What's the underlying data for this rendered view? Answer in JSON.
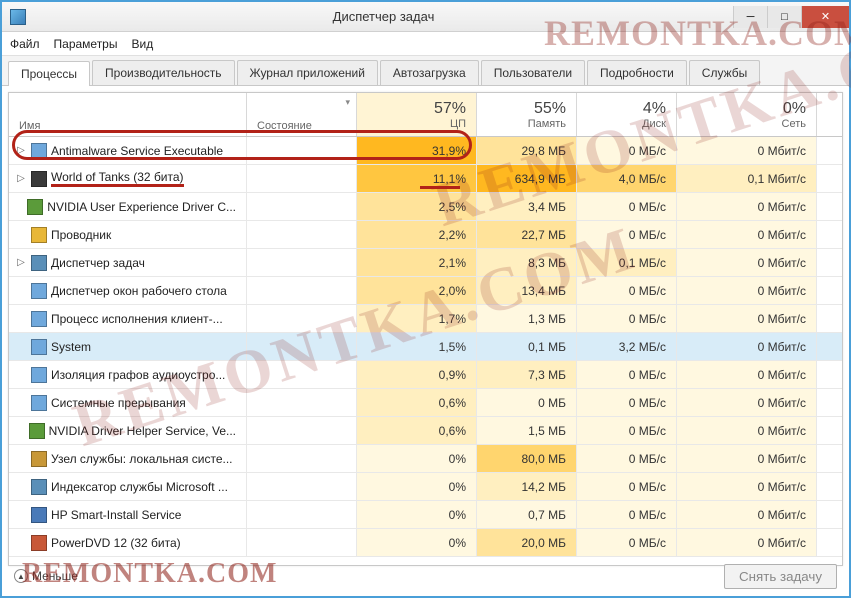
{
  "window": {
    "title": "Диспетчер задач",
    "minimize": "─",
    "maximize": "□",
    "close": "✕"
  },
  "menubar": {
    "file": "Файл",
    "options": "Параметры",
    "view": "Вид"
  },
  "tabs": {
    "processes": "Процессы",
    "performance": "Производительность",
    "app_history": "Журнал приложений",
    "startup": "Автозагрузка",
    "users": "Пользователи",
    "details": "Подробности",
    "services": "Службы"
  },
  "columns": {
    "name": "Имя",
    "state": "Состояние",
    "cpu": {
      "pct": "57%",
      "label": "ЦП"
    },
    "memory": {
      "pct": "55%",
      "label": "Память"
    },
    "disk": {
      "pct": "4%",
      "label": "Диск"
    },
    "network": {
      "pct": "0%",
      "label": "Сеть"
    }
  },
  "heat": {
    "scale": [
      "#fff8e0",
      "#ffefc0",
      "#ffe39a",
      "#ffd56e",
      "#ffc640",
      "#ffb820"
    ],
    "cpu_sorted_bg": "#fff4d4"
  },
  "processes": [
    {
      "expander": "▷",
      "icon": "#6fa8dc",
      "name": "Antimalware Service Executable",
      "cpu": "31,9%",
      "cpu_heat": 5,
      "mem": "29,8 МБ",
      "mem_heat": 2,
      "disk": "0 МБ/с",
      "disk_heat": 0,
      "net": "0 Мбит/с",
      "net_heat": 0,
      "annotated": true
    },
    {
      "expander": "▷",
      "icon": "#3a3a3a",
      "name": "World of Tanks (32 бита)",
      "cpu": "11,1%",
      "cpu_heat": 4,
      "mem": "634,9 МБ",
      "mem_heat": 5,
      "disk": "4,0 МБ/с",
      "disk_heat": 3,
      "net": "0,1 Мбит/с",
      "net_heat": 1,
      "underlined": true
    },
    {
      "expander": "",
      "icon": "#5b9b3a",
      "name": "NVIDIA User Experience Driver C...",
      "cpu": "2,5%",
      "cpu_heat": 2,
      "mem": "3,4 МБ",
      "mem_heat": 1,
      "disk": "0 МБ/с",
      "disk_heat": 0,
      "net": "0 Мбит/с",
      "net_heat": 0
    },
    {
      "expander": "",
      "icon": "#e8b738",
      "name": "Проводник",
      "cpu": "2,2%",
      "cpu_heat": 2,
      "mem": "22,7 МБ",
      "mem_heat": 2,
      "disk": "0 МБ/с",
      "disk_heat": 0,
      "net": "0 Мбит/с",
      "net_heat": 0
    },
    {
      "expander": "▷",
      "icon": "#5a8fb8",
      "name": "Диспетчер задач",
      "cpu": "2,1%",
      "cpu_heat": 2,
      "mem": "8,3 МБ",
      "mem_heat": 1,
      "disk": "0,1 МБ/с",
      "disk_heat": 1,
      "net": "0 Мбит/с",
      "net_heat": 0
    },
    {
      "expander": "",
      "icon": "#6fa8dc",
      "name": "Диспетчер окон рабочего стола",
      "cpu": "2,0%",
      "cpu_heat": 2,
      "mem": "13,4 МБ",
      "mem_heat": 1,
      "disk": "0 МБ/с",
      "disk_heat": 0,
      "net": "0 Мбит/с",
      "net_heat": 0
    },
    {
      "expander": "",
      "icon": "#6fa8dc",
      "name": "Процесс исполнения клиент-...",
      "cpu": "1,7%",
      "cpu_heat": 1,
      "mem": "1,3 МБ",
      "mem_heat": 0,
      "disk": "0 МБ/с",
      "disk_heat": 0,
      "net": "0 Мбит/с",
      "net_heat": 0
    },
    {
      "expander": "",
      "icon": "#6fa8dc",
      "name": "System",
      "cpu": "1,5%",
      "cpu_heat": 1,
      "mem": "0,1 МБ",
      "mem_heat": 0,
      "disk": "3,2 МБ/с",
      "disk_heat": 2,
      "net": "0 Мбит/с",
      "net_heat": 0,
      "selected": true
    },
    {
      "expander": "",
      "icon": "#6fa8dc",
      "name": "Изоляция графов аудиоустро...",
      "cpu": "0,9%",
      "cpu_heat": 1,
      "mem": "7,3 МБ",
      "mem_heat": 1,
      "disk": "0 МБ/с",
      "disk_heat": 0,
      "net": "0 Мбит/с",
      "net_heat": 0
    },
    {
      "expander": "",
      "icon": "#6fa8dc",
      "name": "Системные прерывания",
      "cpu": "0,6%",
      "cpu_heat": 1,
      "mem": "0 МБ",
      "mem_heat": 0,
      "disk": "0 МБ/с",
      "disk_heat": 0,
      "net": "0 Мбит/с",
      "net_heat": 0
    },
    {
      "expander": "",
      "icon": "#5b9b3a",
      "name": "NVIDIA Driver Helper Service, Ve...",
      "cpu": "0,6%",
      "cpu_heat": 1,
      "mem": "1,5 МБ",
      "mem_heat": 0,
      "disk": "0 МБ/с",
      "disk_heat": 0,
      "net": "0 Мбит/с",
      "net_heat": 0
    },
    {
      "expander": "",
      "icon": "#c89838",
      "name": "Узел службы: локальная систе...",
      "cpu": "0%",
      "cpu_heat": 0,
      "mem": "80,0 МБ",
      "mem_heat": 3,
      "disk": "0 МБ/с",
      "disk_heat": 0,
      "net": "0 Мбит/с",
      "net_heat": 0
    },
    {
      "expander": "",
      "icon": "#5a8fb8",
      "name": "Индексатор службы Microsoft ...",
      "cpu": "0%",
      "cpu_heat": 0,
      "mem": "14,2 МБ",
      "mem_heat": 1,
      "disk": "0 МБ/с",
      "disk_heat": 0,
      "net": "0 Мбит/с",
      "net_heat": 0
    },
    {
      "expander": "",
      "icon": "#4a7ab8",
      "name": "HP Smart-Install Service",
      "cpu": "0%",
      "cpu_heat": 0,
      "mem": "0,7 МБ",
      "mem_heat": 0,
      "disk": "0 МБ/с",
      "disk_heat": 0,
      "net": "0 Мбит/с",
      "net_heat": 0
    },
    {
      "expander": "",
      "icon": "#c85838",
      "name": "PowerDVD 12 (32 бита)",
      "cpu": "0%",
      "cpu_heat": 0,
      "mem": "20,0 МБ",
      "mem_heat": 2,
      "disk": "0 МБ/с",
      "disk_heat": 0,
      "net": "0 Мбит/с",
      "net_heat": 0
    }
  ],
  "footer": {
    "less": "Меньше",
    "end_task": "Снять задачу"
  },
  "watermark": "REMONTKA.COM"
}
